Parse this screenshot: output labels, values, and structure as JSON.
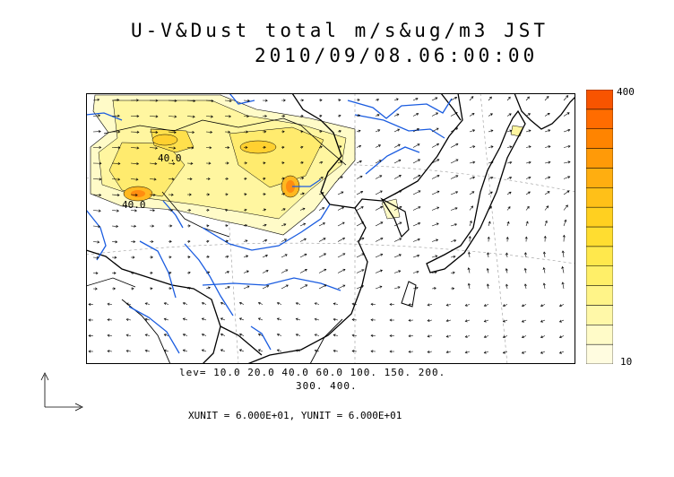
{
  "title": {
    "line1": "U-V&Dust total m/s&ug/m3 JST",
    "line2": "2010/09/08.06:00:00"
  },
  "colorbar": {
    "min_label": "10",
    "max_label": "400",
    "colors": [
      "#fffce0",
      "#fffbc8",
      "#fff8a8",
      "#fff488",
      "#ffef68",
      "#ffe84c",
      "#ffdd30",
      "#ffd020",
      "#ffc018",
      "#ffae10",
      "#ff9a08",
      "#ff8400",
      "#ff6c00",
      "#f85400"
    ]
  },
  "contour_levels": {
    "line1": "lev= 10.0 20.0 40.0 60.0 100. 150. 200.",
    "line2": "300. 400."
  },
  "units": "XUNIT = 6.000E+01, YUNIT = 6.000E+01",
  "map": {
    "contour_labels": [
      "40.0",
      "40.0"
    ],
    "colors": {
      "coast": "#000000",
      "river": "#1a5ce0",
      "dust_low": "#fffbc8",
      "dust_high": "#ff8c10"
    }
  }
}
